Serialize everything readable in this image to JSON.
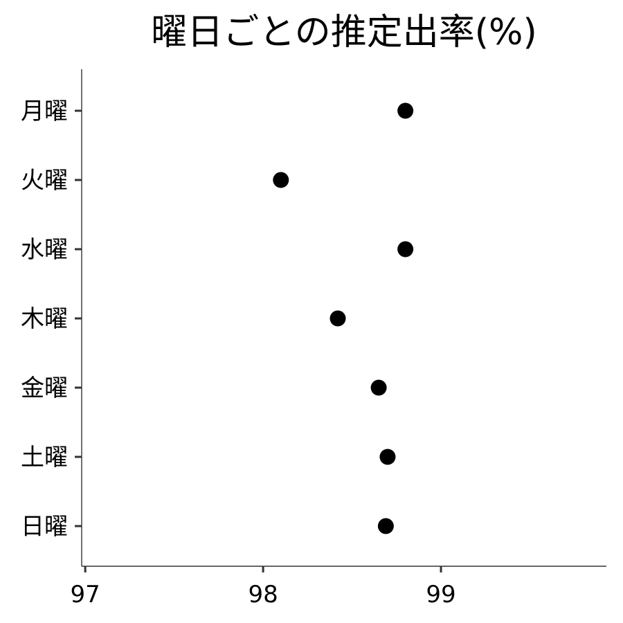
{
  "chart_data": {
    "type": "scatter",
    "title": "曜日ごとの推定出率(%)",
    "xlabel": "",
    "ylabel": "",
    "xlim": [
      96.98,
      99.93
    ],
    "xticks": [
      97,
      98,
      99
    ],
    "categories": [
      "月曜",
      "火曜",
      "水曜",
      "木曜",
      "金曜",
      "土曜",
      "日曜"
    ],
    "values": [
      98.8,
      98.1,
      98.8,
      98.42,
      98.65,
      98.7,
      98.69
    ],
    "grid": false,
    "legend": "none",
    "point_color": "#000000"
  }
}
